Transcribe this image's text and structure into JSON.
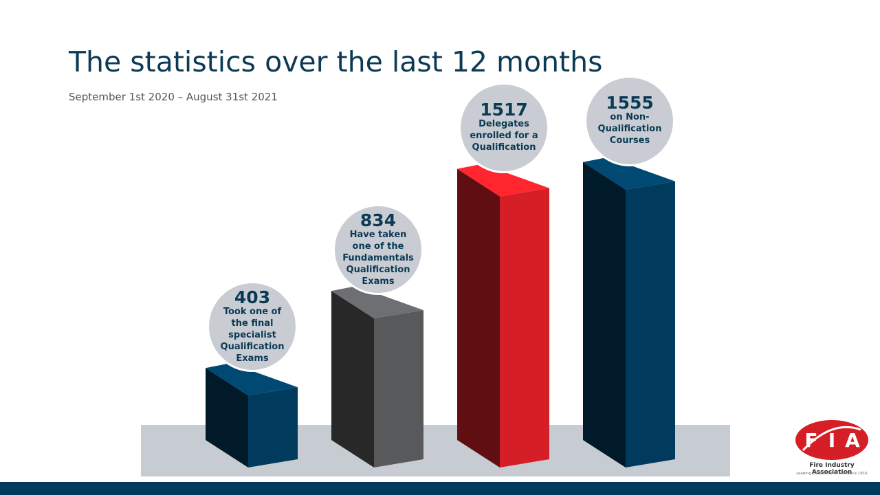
{
  "chart_data": {
    "type": "bar3d",
    "title": "The statistics over the last 12 months",
    "subtitle": "September 1st 2020 – August 31st 2021",
    "categories": [
      "Took one of the final specialist Qualification Exams",
      "Have taken one of the Fundamentals Qualification Exams",
      "Delegates enrolled for a Qualification",
      "on Non-Qualification Courses"
    ],
    "values": [
      403,
      834,
      1517,
      1555
    ],
    "colors": [
      "#003a5c",
      "#58595b",
      "#d51e25",
      "#003a5c"
    ]
  },
  "logo": {
    "letters": [
      "F",
      "I",
      "A"
    ],
    "name": "Fire Industry Association",
    "tagline": "Leading Excellence in Fire Since 1916"
  }
}
